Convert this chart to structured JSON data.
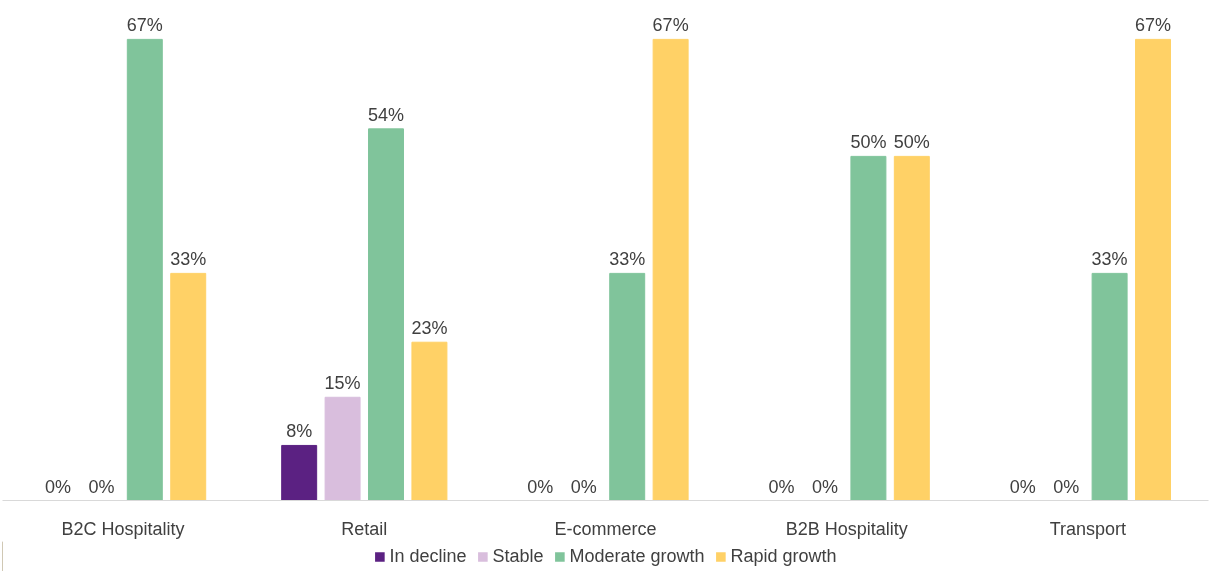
{
  "chart_data": {
    "type": "bar",
    "categories": [
      "B2C Hospitality",
      "Retail",
      "E-commerce",
      "B2B Hospitality",
      "Transport"
    ],
    "series": [
      {
        "name": "In decline",
        "color": "#5b2182",
        "values": [
          0,
          8,
          0,
          0,
          0
        ],
        "value_labels": [
          "0%",
          "8%",
          "0%",
          "0%",
          "0%"
        ]
      },
      {
        "name": "Stable",
        "color": "#d9bedd",
        "values": [
          0,
          15,
          0,
          0,
          0
        ],
        "value_labels": [
          "0%",
          "15%",
          "0%",
          "0%",
          "0%"
        ]
      },
      {
        "name": "Moderate growth",
        "color": "#80c49b",
        "values": [
          67,
          54,
          33,
          50,
          33
        ],
        "value_labels": [
          "67%",
          "54%",
          "33%",
          "50%",
          "33%"
        ]
      },
      {
        "name": "Rapid growth",
        "color": "#ffd166",
        "values": [
          33,
          23,
          67,
          50,
          67
        ],
        "value_labels": [
          "33%",
          "23%",
          "67%",
          "50%",
          "67%"
        ]
      }
    ],
    "grid": false,
    "legend": "bottom"
  }
}
